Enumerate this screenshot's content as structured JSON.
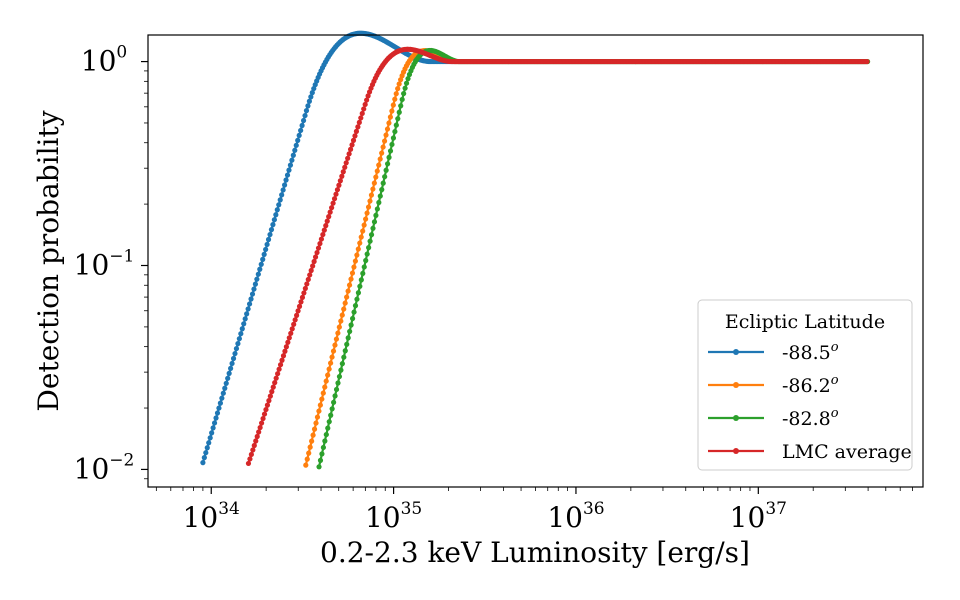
{
  "chart_data": {
    "type": "line",
    "xlabel": "0.2-2.3 keV Luminosity [erg/s]",
    "ylabel": "Detection probability",
    "xscale": "log",
    "yscale": "log",
    "xlim": [
      4.5e+33,
      8e+37
    ],
    "ylim": [
      0.0082,
      1.35
    ],
    "x_ticks": [
      {
        "base": "10",
        "exp": "34",
        "value": 1e+34
      },
      {
        "base": "10",
        "exp": "35",
        "value": 1e+35
      },
      {
        "base": "10",
        "exp": "36",
        "value": 1e+36
      },
      {
        "base": "10",
        "exp": "37",
        "value": 1e+37
      }
    ],
    "y_ticks": [
      {
        "base": "10",
        "exp": "0",
        "value": 1
      },
      {
        "base": "10",
        "exp": "−1",
        "value": 0.1
      },
      {
        "base": "10",
        "exp": "−2",
        "value": 0.01
      }
    ],
    "legend": {
      "title": "Ecliptic Latitude",
      "position": "lower-right"
    },
    "series": [
      {
        "name": "-88.5",
        "superscript": "o",
        "color": "#1f77b4",
        "x_start": 9e+33,
        "y_start": 0.0108,
        "x_turn": 3.3e+34,
        "y_turn": 0.56,
        "x_plateau": 1.6e+35,
        "x_end": 4e+37
      },
      {
        "name": "-86.2",
        "superscript": "o",
        "color": "#ff7f0e",
        "x_start": 3.3e+34,
        "y_start": 0.0105,
        "x_turn": 1e+35,
        "y_turn": 0.62,
        "x_plateau": 2.2e+35,
        "x_end": 4e+37
      },
      {
        "name": "-82.8",
        "superscript": "o",
        "color": "#2ca02c",
        "x_start": 3.9e+34,
        "y_start": 0.0103,
        "x_turn": 1.1e+35,
        "y_turn": 0.62,
        "x_plateau": 2.3e+35,
        "x_end": 4e+37
      },
      {
        "name": "LMC average",
        "superscript": "",
        "color": "#d62728",
        "x_start": 1.6e+34,
        "y_start": 0.0107,
        "x_turn": 7e+34,
        "y_turn": 0.62,
        "x_plateau": 2.1e+35,
        "x_end": 4e+37
      }
    ]
  }
}
